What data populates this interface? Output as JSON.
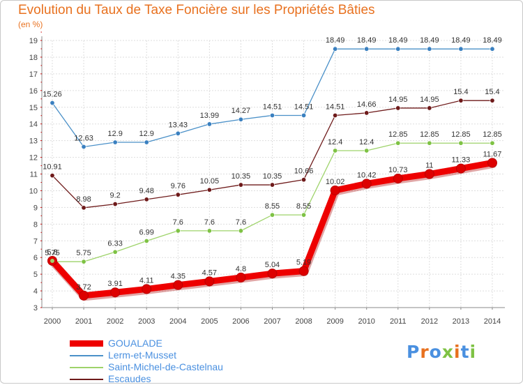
{
  "chart_data": {
    "type": "line",
    "title": "Evolution du Taux de Taxe Foncière sur les Propriétés Bâties",
    "subtitle": "(en %)",
    "xlabel": "",
    "ylabel": "",
    "ylim": [
      3,
      19
    ],
    "yticks": [
      "3",
      "4",
      "5",
      "6",
      "7",
      "8",
      "9",
      "10",
      "11",
      "12",
      "13",
      "14",
      "15",
      "16",
      "17",
      "18",
      "19"
    ],
    "categories": [
      "2000",
      "2001",
      "2002",
      "2003",
      "2004",
      "2005",
      "2006",
      "2007",
      "2008",
      "2009",
      "2010",
      "2011",
      "2012",
      "2013",
      "2014"
    ],
    "series": [
      {
        "name": "Lerm-et-Musset",
        "color": "#4a90c8",
        "dot": "#3a80c0",
        "values": [
          15.26,
          12.63,
          12.9,
          12.9,
          13.43,
          13.99,
          14.27,
          14.51,
          14.51,
          18.49,
          18.49,
          18.49,
          18.49,
          18.49,
          18.49
        ],
        "labels": [
          "15.26",
          "12.63",
          "12.9",
          "12.9",
          "13.43",
          "13.99",
          "14.27",
          "14.51",
          "14.51",
          "18.49",
          "18.49",
          "18.49",
          "18.49",
          "18.49",
          "18.49"
        ]
      },
      {
        "name": "Escaudes",
        "color": "#6e1a1a",
        "dot": "#6e1a1a",
        "values": [
          10.91,
          8.98,
          9.2,
          9.48,
          9.76,
          10.05,
          10.35,
          10.35,
          10.66,
          14.51,
          14.66,
          14.95,
          14.95,
          15.4,
          15.4
        ],
        "labels": [
          "10.91",
          "8.98",
          "9.2",
          "9.48",
          "9.76",
          "10.05",
          "10.35",
          "10.35",
          "10.66",
          "14.51",
          "14.66",
          "14.95",
          "14.95",
          "15.4",
          "15.4"
        ]
      },
      {
        "name": "Saint-Michel-de-Castelnau",
        "color": "#9ed36a",
        "dot": "#7ec244",
        "values": [
          5.75,
          5.75,
          6.33,
          6.99,
          7.6,
          7.6,
          7.6,
          8.55,
          8.55,
          12.4,
          12.4,
          12.85,
          12.85,
          12.85,
          12.85
        ],
        "labels": [
          "5.75",
          "5.75",
          "6.33",
          "6.99",
          "7.6",
          "7.6",
          "7.6",
          "8.55",
          "8.55",
          "12.4",
          "12.4",
          "12.85",
          "12.85",
          "12.85",
          "12.85"
        ]
      },
      {
        "name": "GOUALADE",
        "color": "#ee0000",
        "dot": "#dd0000",
        "values": [
          5.8,
          3.72,
          3.91,
          4.11,
          4.35,
          4.57,
          4.8,
          5.04,
          5.19,
          10.02,
          10.42,
          10.73,
          11.0,
          11.33,
          11.67
        ],
        "labels": [
          "5.8",
          "3.72",
          "3.91",
          "4.11",
          "4.35",
          "4.57",
          "4.8",
          "5.04",
          "5.19",
          "10.02",
          "10.42",
          "10.73",
          "11",
          "11.33",
          "11.67"
        ]
      }
    ]
  },
  "legend": [
    {
      "name": "GOUALADE",
      "color": "#ee0000"
    },
    {
      "name": "Lerm-et-Musset",
      "color": "#4a90c8"
    },
    {
      "name": "Saint-Michel-de-Castelnau",
      "color": "#9ed36a"
    },
    {
      "name": "Escaudes",
      "color": "#6e1a1a"
    }
  ],
  "logo": {
    "text": "Proxiti",
    "colors": [
      "#4a90e0",
      "#e8711f",
      "#4a90e0",
      "#7ec244",
      "#e8711f",
      "#4a90e0",
      "#7ec244"
    ]
  }
}
